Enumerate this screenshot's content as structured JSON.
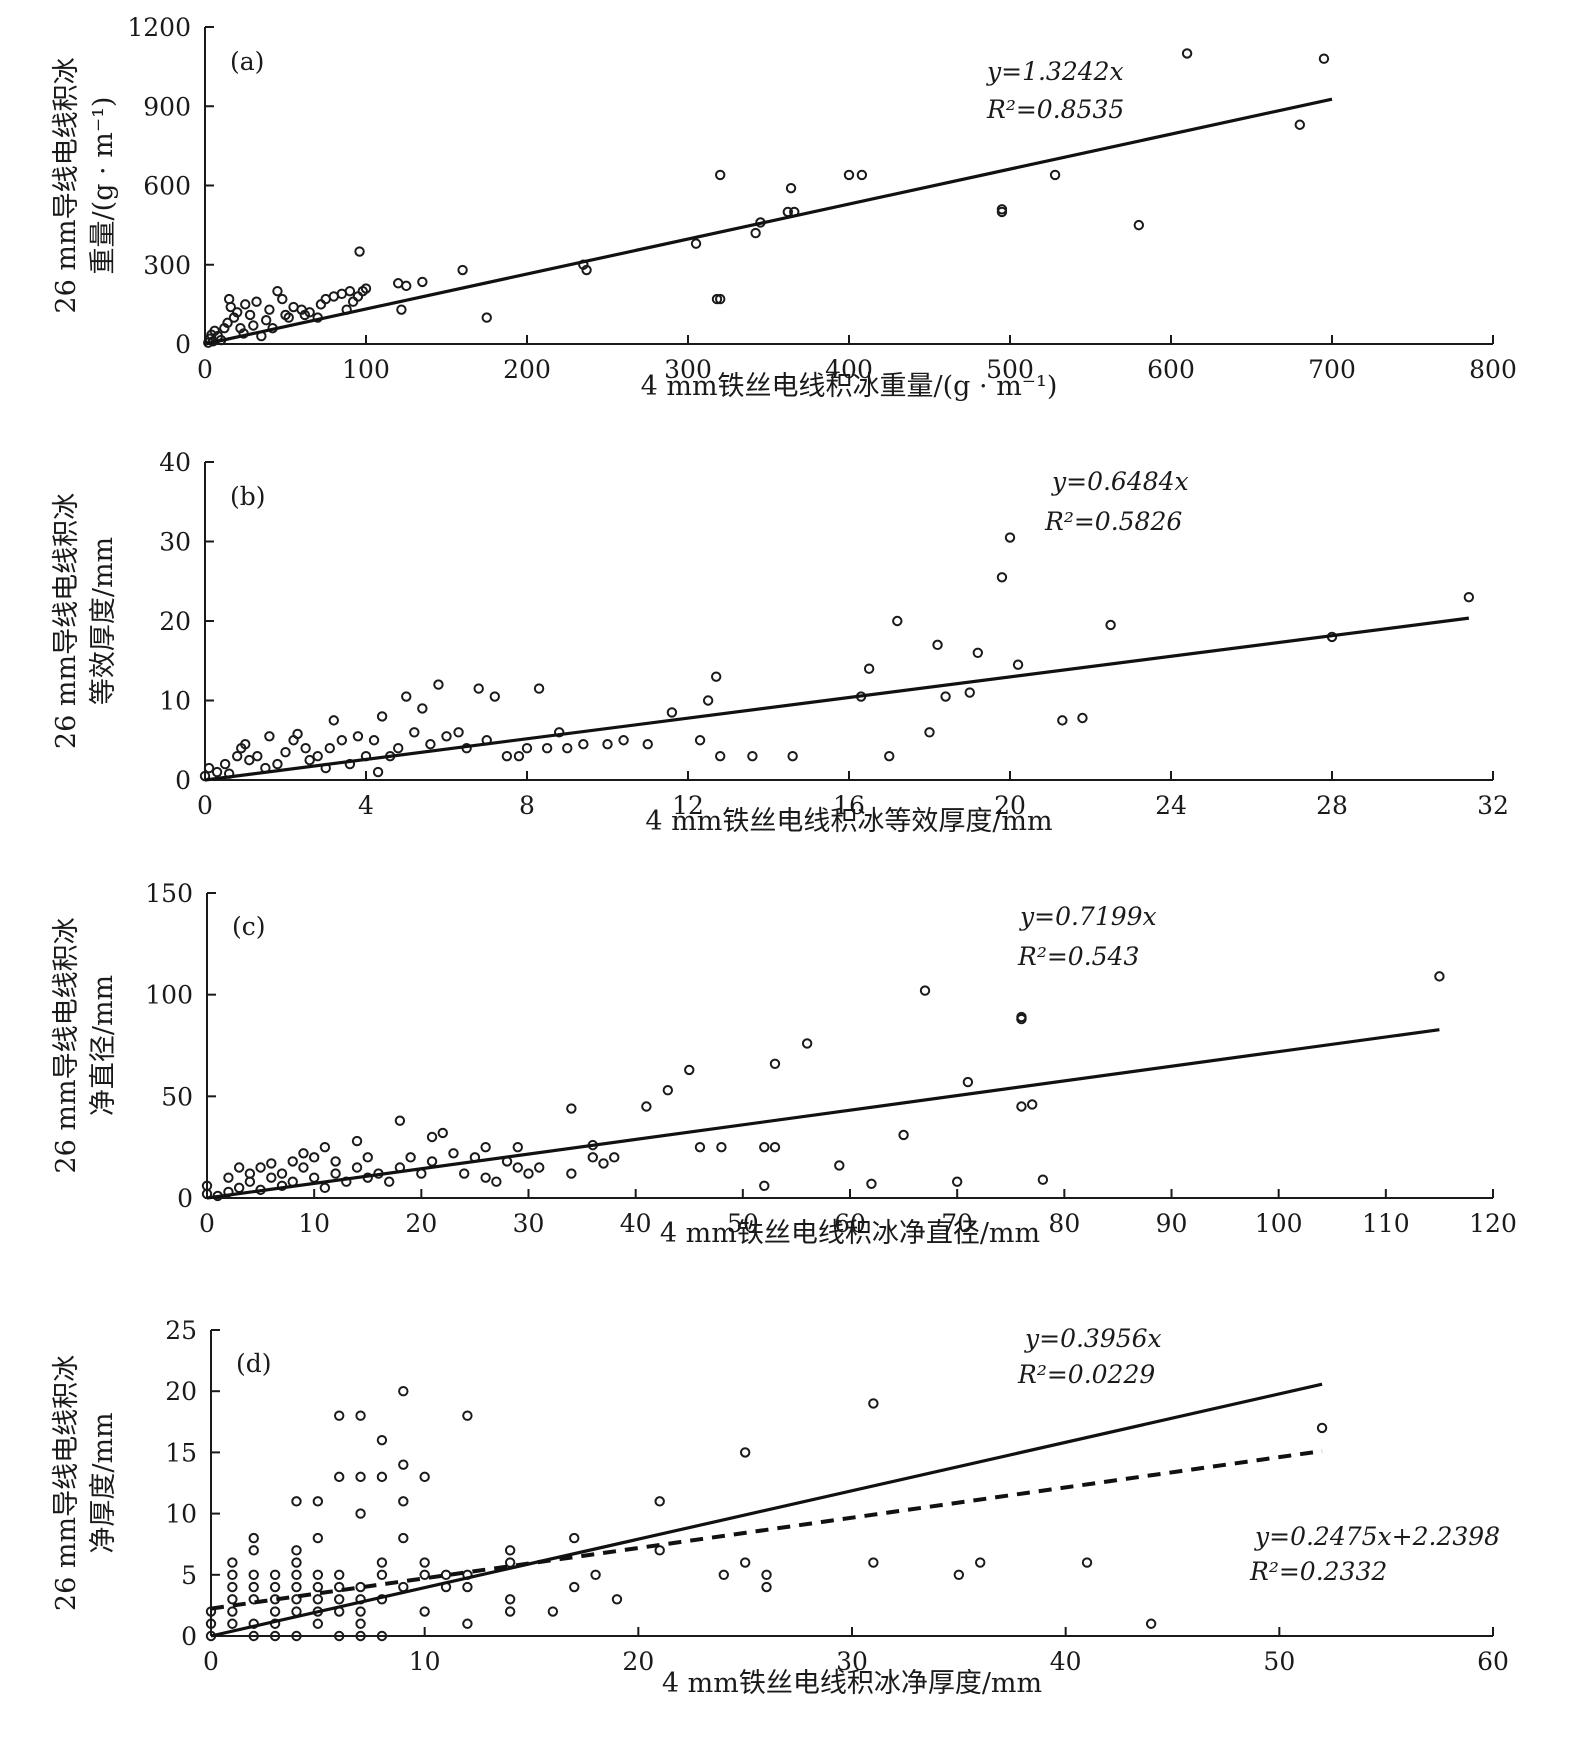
{
  "chart_data": [
    {
      "type": "scatter",
      "panel": "(a)",
      "xlabel": "4 mm铁丝电线积冰重量/(g · m⁻¹)",
      "ylabel_line1": "26 mm导线电线积冰",
      "ylabel_line2": "重量/(g · m⁻¹)",
      "xlim": [
        0,
        800
      ],
      "ylim": [
        0,
        1200
      ],
      "xticks": [
        0,
        100,
        200,
        300,
        400,
        500,
        600,
        700,
        800
      ],
      "yticks": [
        0,
        300,
        600,
        900,
        1200
      ],
      "fits": [
        {
          "style": "solid",
          "slope": 1.3242,
          "intercept": 0,
          "x_range": [
            0,
            700
          ],
          "equation": "y=1.3242x",
          "r2": "R²=0.8535"
        }
      ],
      "points": [
        [
          2,
          5
        ],
        [
          3,
          20
        ],
        [
          5,
          10
        ],
        [
          4,
          35
        ],
        [
          6,
          50
        ],
        [
          8,
          30
        ],
        [
          10,
          15
        ],
        [
          12,
          60
        ],
        [
          14,
          80
        ],
        [
          15,
          170
        ],
        [
          16,
          140
        ],
        [
          18,
          100
        ],
        [
          20,
          120
        ],
        [
          22,
          60
        ],
        [
          24,
          40
        ],
        [
          25,
          150
        ],
        [
          28,
          110
        ],
        [
          30,
          70
        ],
        [
          32,
          160
        ],
        [
          35,
          30
        ],
        [
          38,
          90
        ],
        [
          40,
          130
        ],
        [
          42,
          60
        ],
        [
          45,
          200
        ],
        [
          48,
          170
        ],
        [
          50,
          110
        ],
        [
          52,
          100
        ],
        [
          55,
          140
        ],
        [
          60,
          130
        ],
        [
          62,
          110
        ],
        [
          65,
          120
        ],
        [
          70,
          100
        ],
        [
          72,
          150
        ],
        [
          75,
          170
        ],
        [
          80,
          180
        ],
        [
          85,
          190
        ],
        [
          88,
          130
        ],
        [
          90,
          200
        ],
        [
          92,
          160
        ],
        [
          95,
          180
        ],
        [
          98,
          200
        ],
        [
          100,
          210
        ],
        [
          96,
          350
        ],
        [
          120,
          230
        ],
        [
          122,
          130
        ],
        [
          125,
          220
        ],
        [
          135,
          235
        ],
        [
          160,
          280
        ],
        [
          175,
          100
        ],
        [
          235,
          300
        ],
        [
          237,
          280
        ],
        [
          305,
          380
        ],
        [
          318,
          170
        ],
        [
          320,
          170
        ],
        [
          320,
          640
        ],
        [
          342,
          420
        ],
        [
          345,
          460
        ],
        [
          362,
          500
        ],
        [
          364,
          590
        ],
        [
          366,
          500
        ],
        [
          400,
          640
        ],
        [
          408,
          640
        ],
        [
          495,
          500
        ],
        [
          495,
          510
        ],
        [
          528,
          640
        ],
        [
          580,
          450
        ],
        [
          610,
          1100
        ],
        [
          680,
          830
        ],
        [
          695,
          1080
        ]
      ]
    },
    {
      "type": "scatter",
      "panel": "(b)",
      "xlabel": "4 mm铁丝电线积冰等效厚度/mm",
      "ylabel_line1": "26 mm导线电线积冰",
      "ylabel_line2": "等效厚度/mm",
      "xlim": [
        0,
        32
      ],
      "ylim": [
        0,
        40
      ],
      "xticks": [
        0,
        4,
        8,
        12,
        16,
        20,
        24,
        28,
        32
      ],
      "yticks": [
        0,
        10,
        20,
        30,
        40
      ],
      "fits": [
        {
          "style": "solid",
          "slope": 0.6484,
          "intercept": 0,
          "x_range": [
            0,
            31.4
          ],
          "equation": "y=0.6484x",
          "r2": "R²=0.5826"
        }
      ],
      "points": [
        [
          0,
          0.5
        ],
        [
          0.1,
          1.5
        ],
        [
          0.3,
          1
        ],
        [
          0.5,
          2
        ],
        [
          0.6,
          0.8
        ],
        [
          0.8,
          3
        ],
        [
          0.9,
          4
        ],
        [
          1,
          4.5
        ],
        [
          1.1,
          2.5
        ],
        [
          1.3,
          3
        ],
        [
          1.5,
          1.5
        ],
        [
          1.6,
          5.5
        ],
        [
          1.8,
          2
        ],
        [
          2,
          3.5
        ],
        [
          2.2,
          5
        ],
        [
          2.3,
          5.8
        ],
        [
          2.5,
          4
        ],
        [
          2.6,
          2.5
        ],
        [
          2.8,
          3
        ],
        [
          3,
          1.5
        ],
        [
          3.1,
          4
        ],
        [
          3.2,
          7.5
        ],
        [
          3.4,
          5
        ],
        [
          3.6,
          2
        ],
        [
          3.8,
          5.5
        ],
        [
          4,
          3
        ],
        [
          4.2,
          5
        ],
        [
          4.3,
          1
        ],
        [
          4.4,
          8
        ],
        [
          4.6,
          3
        ],
        [
          4.8,
          4
        ],
        [
          5,
          10.5
        ],
        [
          5.2,
          6
        ],
        [
          5.4,
          9
        ],
        [
          5.6,
          4.5
        ],
        [
          5.8,
          12
        ],
        [
          6,
          5.5
        ],
        [
          6.3,
          6
        ],
        [
          6.5,
          4
        ],
        [
          6.8,
          11.5
        ],
        [
          7,
          5
        ],
        [
          7.2,
          10.5
        ],
        [
          7.5,
          3
        ],
        [
          7.8,
          3
        ],
        [
          8,
          4
        ],
        [
          8.3,
          11.5
        ],
        [
          8.5,
          4
        ],
        [
          8.8,
          6
        ],
        [
          9,
          4
        ],
        [
          9.4,
          4.5
        ],
        [
          10,
          4.5
        ],
        [
          10.4,
          5
        ],
        [
          11,
          4.5
        ],
        [
          11.6,
          8.5
        ],
        [
          12.3,
          5
        ],
        [
          12.5,
          10
        ],
        [
          12.7,
          13
        ],
        [
          12.8,
          3
        ],
        [
          13.6,
          3
        ],
        [
          14.6,
          3
        ],
        [
          16.3,
          10.5
        ],
        [
          16.5,
          14
        ],
        [
          17,
          3
        ],
        [
          17.2,
          20
        ],
        [
          18,
          6
        ],
        [
          18.2,
          17
        ],
        [
          18.4,
          10.5
        ],
        [
          19,
          11
        ],
        [
          19.2,
          16
        ],
        [
          19.8,
          25.5
        ],
        [
          20,
          30.5
        ],
        [
          20.2,
          14.5
        ],
        [
          21.3,
          7.5
        ],
        [
          21.8,
          7.8
        ],
        [
          22.5,
          19.5
        ],
        [
          28,
          18
        ],
        [
          31.4,
          23
        ]
      ]
    },
    {
      "type": "scatter",
      "panel": "(c)",
      "xlabel": "4 mm铁丝电线积冰净直径/mm",
      "ylabel_line1": "26 mm导线电线积冰",
      "ylabel_line2": "净直径/mm",
      "xlim": [
        0,
        120
      ],
      "ylim": [
        0,
        150
      ],
      "xticks": [
        0,
        10,
        20,
        30,
        40,
        50,
        60,
        70,
        80,
        90,
        100,
        110,
        120
      ],
      "yticks": [
        0,
        50,
        100,
        150
      ],
      "fits": [
        {
          "style": "solid",
          "slope": 0.7199,
          "intercept": 0,
          "x_range": [
            0,
            115
          ],
          "equation": "y=0.7199x",
          "r2": "R²=0.543"
        }
      ],
      "points": [
        [
          0,
          2
        ],
        [
          0,
          6
        ],
        [
          1,
          1
        ],
        [
          2,
          3
        ],
        [
          2,
          10
        ],
        [
          3,
          5
        ],
        [
          3,
          15
        ],
        [
          4,
          8
        ],
        [
          4,
          12
        ],
        [
          5,
          4
        ],
        [
          5,
          15
        ],
        [
          6,
          10
        ],
        [
          6,
          17
        ],
        [
          7,
          6
        ],
        [
          7,
          12
        ],
        [
          8,
          8
        ],
        [
          8,
          18
        ],
        [
          9,
          15
        ],
        [
          9,
          22
        ],
        [
          10,
          10
        ],
        [
          10,
          20
        ],
        [
          11,
          5
        ],
        [
          11,
          25
        ],
        [
          12,
          18
        ],
        [
          12,
          12
        ],
        [
          13,
          8
        ],
        [
          14,
          28
        ],
        [
          14,
          15
        ],
        [
          15,
          20
        ],
        [
          15,
          10
        ],
        [
          16,
          12
        ],
        [
          17,
          8
        ],
        [
          18,
          38
        ],
        [
          18,
          15
        ],
        [
          19,
          20
        ],
        [
          20,
          12
        ],
        [
          21,
          30
        ],
        [
          21,
          18
        ],
        [
          22,
          32
        ],
        [
          23,
          22
        ],
        [
          24,
          12
        ],
        [
          25,
          20
        ],
        [
          26,
          25
        ],
        [
          26,
          10
        ],
        [
          27,
          8
        ],
        [
          28,
          18
        ],
        [
          29,
          15
        ],
        [
          29,
          25
        ],
        [
          30,
          12
        ],
        [
          31,
          15
        ],
        [
          34,
          12
        ],
        [
          34,
          44
        ],
        [
          36,
          20
        ],
        [
          36,
          26
        ],
        [
          37,
          17
        ],
        [
          38,
          20
        ],
        [
          41,
          45
        ],
        [
          43,
          53
        ],
        [
          45,
          63
        ],
        [
          46,
          25
        ],
        [
          48,
          25
        ],
        [
          52,
          25
        ],
        [
          52,
          6
        ],
        [
          53,
          25
        ],
        [
          53,
          66
        ],
        [
          56,
          76
        ],
        [
          59,
          16
        ],
        [
          62,
          7
        ],
        [
          65,
          31
        ],
        [
          67,
          102
        ],
        [
          70,
          8
        ],
        [
          71,
          57
        ],
        [
          76,
          88
        ],
        [
          76,
          89
        ],
        [
          76,
          45
        ],
        [
          77,
          46
        ],
        [
          78,
          9
        ],
        [
          115,
          109
        ]
      ]
    },
    {
      "type": "scatter",
      "panel": "(d)",
      "xlabel": "4 mm铁丝电线积冰净厚度/mm",
      "ylabel_line1": "26 mm导线电线积冰",
      "ylabel_line2": "净厚度/mm",
      "xlim": [
        0,
        60
      ],
      "ylim": [
        0,
        25
      ],
      "xticks": [
        0,
        10,
        20,
        30,
        40,
        50,
        60
      ],
      "yticks": [
        0,
        5,
        10,
        15,
        20,
        25
      ],
      "fits": [
        {
          "style": "solid",
          "slope": 0.3956,
          "intercept": 0,
          "x_range": [
            0,
            52
          ],
          "equation": "y=0.3956x",
          "r2": "R²=0.0229"
        },
        {
          "style": "dashed",
          "slope": 0.2475,
          "intercept": 2.2398,
          "x_range": [
            0,
            52
          ],
          "equation": "y=0.2475x+2.2398",
          "r2": "R²=0.2332"
        }
      ],
      "points": [
        [
          0,
          0
        ],
        [
          0,
          1
        ],
        [
          0,
          2
        ],
        [
          1,
          1
        ],
        [
          1,
          2
        ],
        [
          1,
          3
        ],
        [
          1,
          4
        ],
        [
          1,
          5
        ],
        [
          1,
          6
        ],
        [
          2,
          0
        ],
        [
          2,
          1
        ],
        [
          2,
          3
        ],
        [
          2,
          4
        ],
        [
          2,
          5
        ],
        [
          2,
          7
        ],
        [
          2,
          8
        ],
        [
          3,
          0
        ],
        [
          3,
          1
        ],
        [
          3,
          2
        ],
        [
          3,
          3
        ],
        [
          3,
          4
        ],
        [
          3,
          5
        ],
        [
          4,
          0
        ],
        [
          4,
          2
        ],
        [
          4,
          3
        ],
        [
          4,
          4
        ],
        [
          4,
          5
        ],
        [
          4,
          6
        ],
        [
          4,
          7
        ],
        [
          4,
          11
        ],
        [
          5,
          1
        ],
        [
          5,
          2
        ],
        [
          5,
          3
        ],
        [
          5,
          4
        ],
        [
          5,
          5
        ],
        [
          5,
          8
        ],
        [
          5,
          11
        ],
        [
          6,
          0
        ],
        [
          6,
          2
        ],
        [
          6,
          3
        ],
        [
          6,
          4
        ],
        [
          6,
          5
        ],
        [
          6,
          13
        ],
        [
          6,
          18
        ],
        [
          7,
          0
        ],
        [
          7,
          1
        ],
        [
          7,
          2
        ],
        [
          7,
          3
        ],
        [
          7,
          4
        ],
        [
          7,
          10
        ],
        [
          7,
          13
        ],
        [
          7,
          18
        ],
        [
          8,
          0
        ],
        [
          8,
          3
        ],
        [
          8,
          5
        ],
        [
          8,
          6
        ],
        [
          8,
          13
        ],
        [
          8,
          16
        ],
        [
          9,
          4
        ],
        [
          9,
          8
        ],
        [
          9,
          11
        ],
        [
          9,
          14
        ],
        [
          9,
          20
        ],
        [
          10,
          2
        ],
        [
          10,
          5
        ],
        [
          10,
          6
        ],
        [
          10,
          13
        ],
        [
          11,
          4
        ],
        [
          11,
          5
        ],
        [
          12,
          1
        ],
        [
          12,
          4
        ],
        [
          12,
          5
        ],
        [
          12,
          18
        ],
        [
          14,
          2
        ],
        [
          14,
          3
        ],
        [
          14,
          6
        ],
        [
          14,
          7
        ],
        [
          16,
          2
        ],
        [
          17,
          4
        ],
        [
          17,
          8
        ],
        [
          18,
          5
        ],
        [
          19,
          3
        ],
        [
          21,
          7
        ],
        [
          21,
          11
        ],
        [
          24,
          5
        ],
        [
          25,
          6
        ],
        [
          25,
          15
        ],
        [
          26,
          4
        ],
        [
          26,
          5
        ],
        [
          31,
          6
        ],
        [
          31,
          19
        ],
        [
          35,
          5
        ],
        [
          36,
          6
        ],
        [
          41,
          6
        ],
        [
          44,
          1
        ],
        [
          52,
          17
        ]
      ]
    }
  ]
}
